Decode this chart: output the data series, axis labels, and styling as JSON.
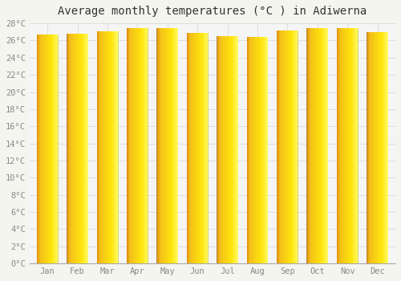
{
  "title": "Average monthly temperatures (°C ) in Adiwerna",
  "months": [
    "Jan",
    "Feb",
    "Mar",
    "Apr",
    "May",
    "Jun",
    "Jul",
    "Aug",
    "Sep",
    "Oct",
    "Nov",
    "Dec"
  ],
  "values": [
    26.7,
    26.8,
    27.1,
    27.4,
    27.4,
    26.9,
    26.5,
    26.4,
    27.2,
    27.4,
    27.4,
    27.0
  ],
  "ylim": [
    0,
    28
  ],
  "yticks": [
    0,
    2,
    4,
    6,
    8,
    10,
    12,
    14,
    16,
    18,
    20,
    22,
    24,
    26,
    28
  ],
  "bar_color_orange": "#F5A623",
  "bar_color_yellow": "#FFD966",
  "bar_color_highlight": "#FFF0A0",
  "bar_edge_color": "#B8860B",
  "background_color": "#F5F5F0",
  "plot_bg_color": "#F5F5F5",
  "grid_color": "#DDDDDD",
  "title_fontsize": 10,
  "tick_fontsize": 7.5,
  "tick_color": "#888888",
  "font_family": "monospace"
}
